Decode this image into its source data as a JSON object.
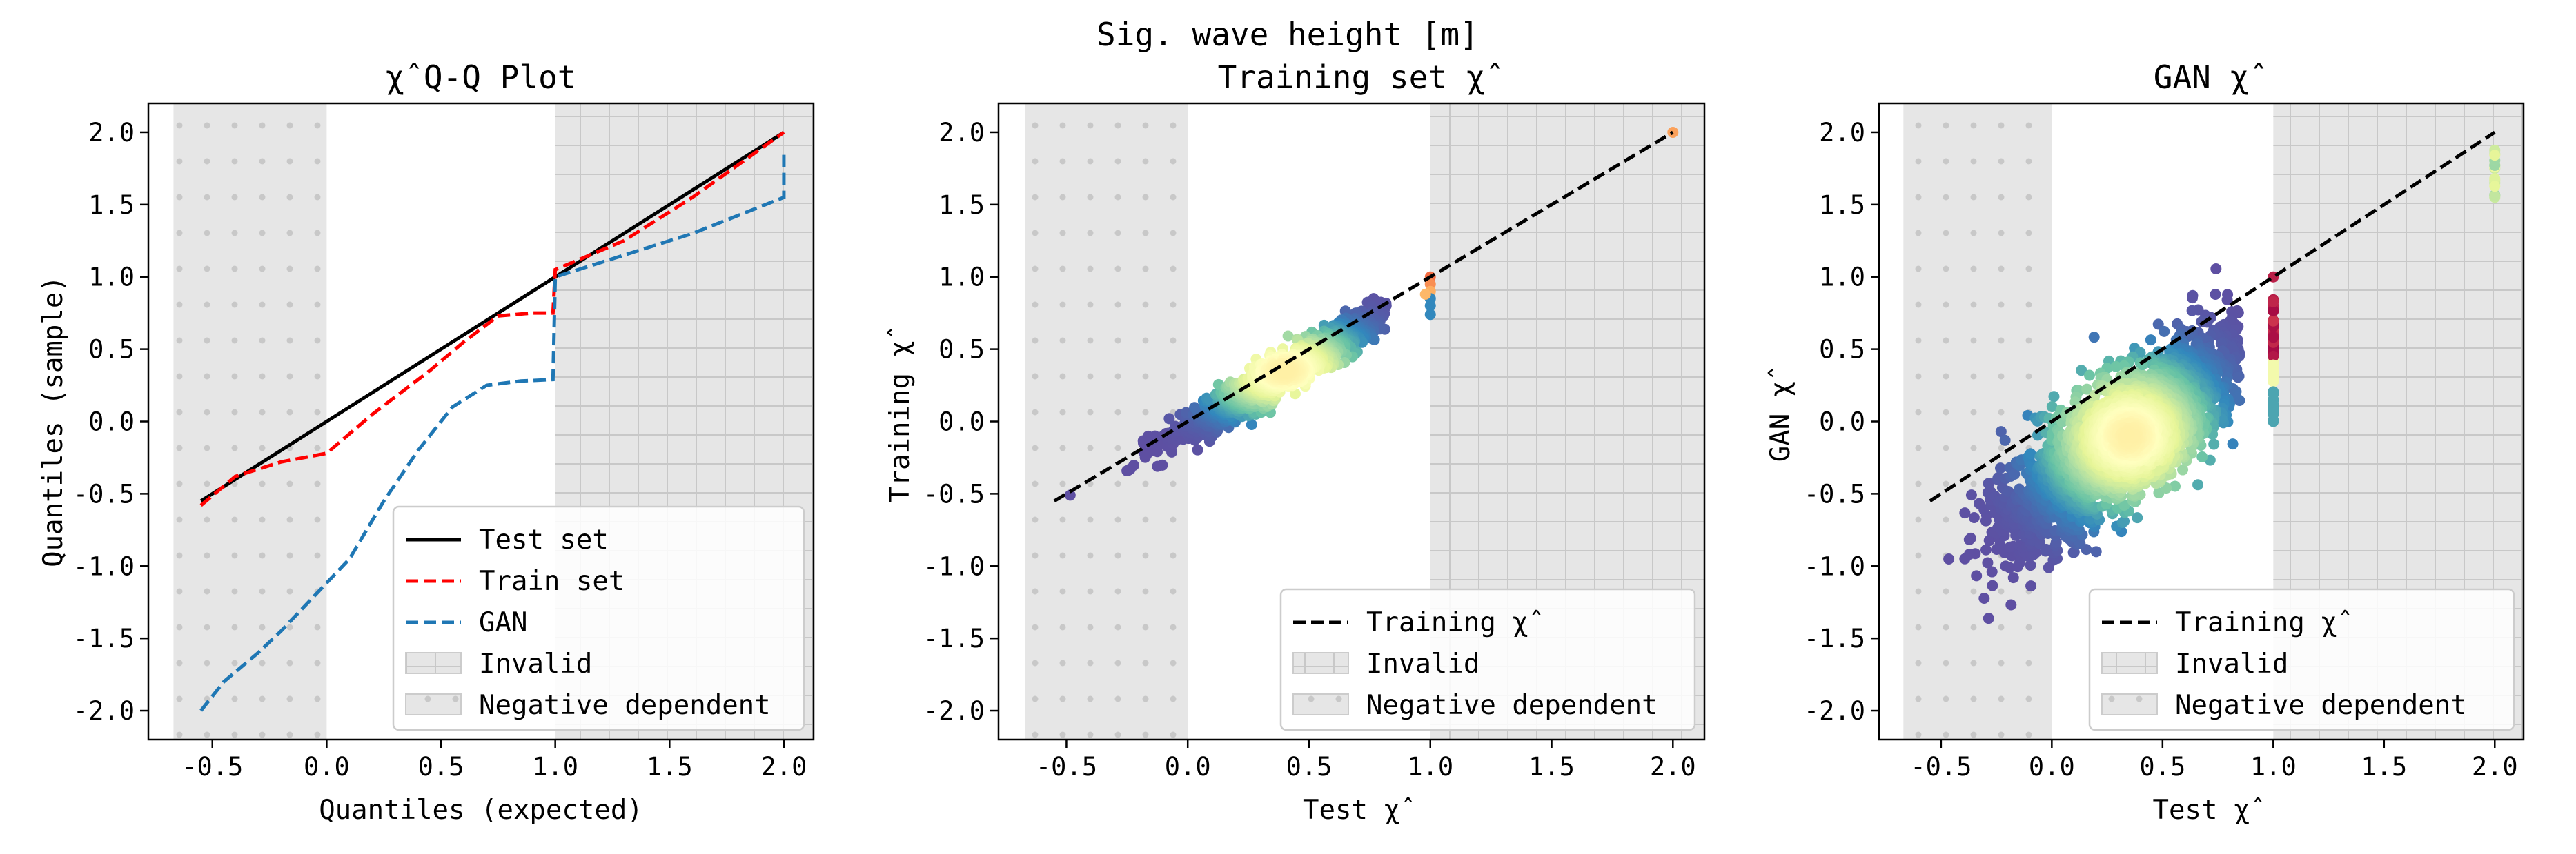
{
  "suptitle": "Sig. wave height [m]",
  "colors": {
    "test_line": "#000000",
    "train_line": "#ff0000",
    "gan_line": "#1f77b4",
    "invalid_fill": "#e6e6e6",
    "negative_fill": "#e6e6e6",
    "hatch": "#c8c8c8",
    "colormap": "Spectral_r"
  },
  "chart_data": [
    {
      "type": "line",
      "title": "χ̂ Q-Q Plot",
      "xlabel": "Quantiles (expected)",
      "ylabel": "Quantiles (sample)",
      "xlim": [
        -0.78,
        2.13
      ],
      "ylim": [
        -2.2,
        2.2
      ],
      "xticks": [
        "-0.5",
        "0.0",
        "0.5",
        "1.0",
        "1.5",
        "2.0"
      ],
      "yticks": [
        "-2.0",
        "-1.5",
        "-1.0",
        "-0.5",
        "0.0",
        "0.5",
        "1.0",
        "1.5",
        "2.0"
      ],
      "invalid_region": [
        1.0,
        2.13
      ],
      "negative_dependent_region": [
        -0.67,
        0.0
      ],
      "series": [
        {
          "name": "Test set",
          "style": "solid",
          "x": [
            -0.55,
            2.0
          ],
          "y": [
            -0.55,
            2.0
          ]
        },
        {
          "name": "Train set",
          "style": "dashed",
          "x": [
            -0.55,
            -0.4,
            -0.2,
            0.0,
            0.2,
            0.45,
            0.6,
            0.75,
            0.9,
            0.99,
            1.0,
            1.3,
            1.6,
            2.0
          ],
          "y": [
            -0.58,
            -0.38,
            -0.28,
            -0.22,
            0.05,
            0.35,
            0.55,
            0.73,
            0.75,
            0.75,
            1.05,
            1.25,
            1.55,
            2.0
          ]
        },
        {
          "name": "GAN",
          "style": "dashed",
          "x": [
            -0.55,
            -0.45,
            -0.3,
            -0.2,
            -0.05,
            0.1,
            0.25,
            0.4,
            0.55,
            0.7,
            0.85,
            0.99,
            1.0,
            1.3,
            1.6,
            2.0,
            2.0
          ],
          "y": [
            -2.0,
            -1.8,
            -1.6,
            -1.45,
            -1.2,
            -0.95,
            -0.55,
            -0.2,
            0.1,
            0.25,
            0.28,
            0.29,
            1.0,
            1.15,
            1.3,
            1.55,
            1.85
          ]
        }
      ],
      "legend": {
        "placement": "lower right",
        "entries": [
          "Test set",
          "Train set",
          "GAN",
          "Invalid",
          "Negative dependent"
        ]
      }
    },
    {
      "type": "scatter",
      "title": "Training set χ̂",
      "xlabel": "Test χ̂",
      "ylabel": "Training χ̂",
      "xlim": [
        -0.78,
        2.13
      ],
      "ylim": [
        -2.2,
        2.2
      ],
      "xticks": [
        "-0.5",
        "0.0",
        "0.5",
        "1.0",
        "1.5",
        "2.0"
      ],
      "yticks": [
        "-2.0",
        "-1.5",
        "-1.0",
        "-0.5",
        "0.0",
        "0.5",
        "1.0",
        "1.5",
        "2.0"
      ],
      "invalid_region": [
        1.0,
        2.13
      ],
      "negative_dependent_region": [
        -0.67,
        0.0
      ],
      "reference_line": {
        "name": "Training χ̂",
        "x": [
          -0.55,
          2.0
        ],
        "y": [
          -0.55,
          2.0
        ]
      },
      "point_cloud": {
        "x_range": [
          -0.55,
          0.82
        ],
        "slope": 0.98,
        "intercept": -0.05,
        "spread": 0.06,
        "density_center": [
          0.4,
          0.35
        ]
      },
      "edge_points": [
        {
          "x": 1.0,
          "y": 1.0
        },
        {
          "x": 1.0,
          "y": 0.95
        },
        {
          "x": 1.0,
          "y": 0.9
        },
        {
          "x": 1.0,
          "y": 0.85
        },
        {
          "x": 1.0,
          "y": 0.8
        },
        {
          "x": 1.0,
          "y": 0.74
        },
        {
          "x": 0.98,
          "y": 0.88
        },
        {
          "x": 2.0,
          "y": 2.0
        }
      ],
      "legend": {
        "placement": "lower right",
        "entries": [
          "Training χ̂",
          "Invalid",
          "Negative dependent"
        ]
      }
    },
    {
      "type": "scatter",
      "title": "GAN χ̂",
      "xlabel": "Test χ̂",
      "ylabel": "GAN χ̂",
      "xlim": [
        -0.78,
        2.13
      ],
      "ylim": [
        -2.2,
        2.2
      ],
      "xticks": [
        "-0.5",
        "0.0",
        "0.5",
        "1.0",
        "1.5",
        "2.0"
      ],
      "yticks": [
        "-2.0",
        "-1.5",
        "-1.0",
        "-0.5",
        "0.0",
        "0.5",
        "1.0",
        "1.5",
        "2.0"
      ],
      "invalid_region": [
        1.0,
        2.13
      ],
      "negative_dependent_region": [
        -0.67,
        0.0
      ],
      "reference_line": {
        "name": "Training χ̂",
        "x": [
          -0.55,
          2.0
        ],
        "y": [
          -0.55,
          2.0
        ]
      },
      "point_cloud": {
        "x_range": [
          -0.55,
          0.85
        ],
        "slope": 1.05,
        "intercept": -0.45,
        "spread": 0.22,
        "density_center": [
          0.35,
          -0.1
        ]
      },
      "edge_points": [
        {
          "x": 1.0,
          "y": 1.0
        },
        {
          "x": 1.0,
          "y": 0.8
        },
        {
          "x": 1.0,
          "y": 0.7
        },
        {
          "x": 1.0,
          "y": 0.6
        },
        {
          "x": 1.0,
          "y": 0.5
        },
        {
          "x": 1.0,
          "y": 0.4
        },
        {
          "x": 1.0,
          "y": 0.3
        },
        {
          "x": 1.0,
          "y": 0.2
        },
        {
          "x": 1.0,
          "y": 0.1
        },
        {
          "x": 1.0,
          "y": 0.0
        },
        {
          "x": 2.0,
          "y": 1.85
        },
        {
          "x": 2.0,
          "y": 1.75
        },
        {
          "x": 2.0,
          "y": 1.65
        },
        {
          "x": 2.0,
          "y": 1.55
        }
      ],
      "legend": {
        "placement": "lower right",
        "entries": [
          "Training χ̂",
          "Invalid",
          "Negative dependent"
        ]
      }
    }
  ]
}
